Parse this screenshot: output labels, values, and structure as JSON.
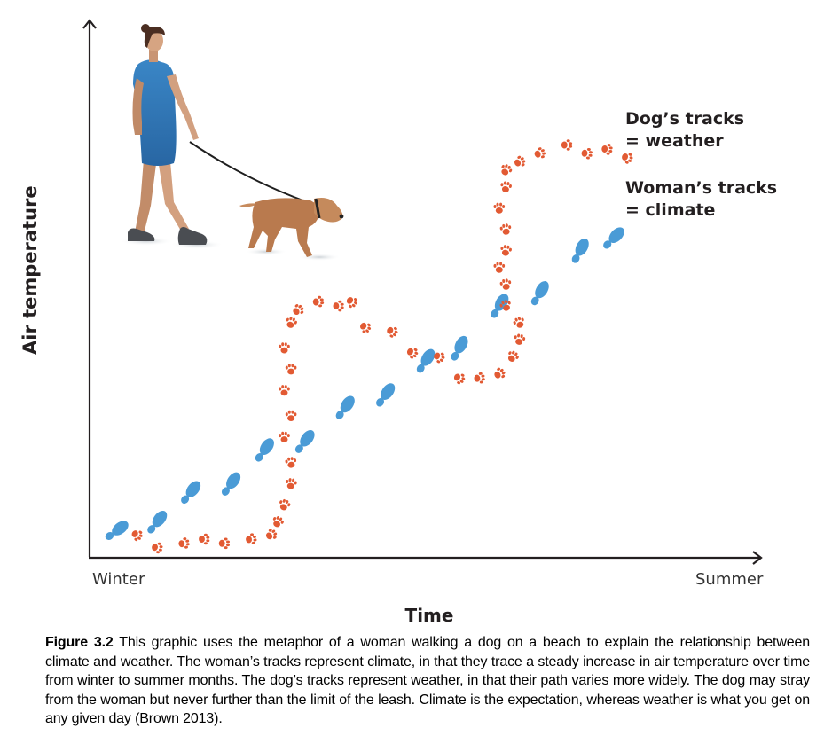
{
  "figure": {
    "y_axis_label": "Air temperature",
    "x_axis_label": "Time",
    "x_start_label": "Winter",
    "x_end_label": "Summer",
    "legend": [
      {
        "line1": "Dog’s tracks",
        "line2": "= weather",
        "icon": "paw-print-icon",
        "color": "#e25a33"
      },
      {
        "line1": "Woman’s tracks",
        "line2": "= climate",
        "icon": "shoe-print-icon",
        "color": "#4a9bd6"
      }
    ],
    "illustration": {
      "woman": "woman-walking-illustration",
      "dog": "dog-on-leash-illustration",
      "dress_color": "#2f76b5",
      "dog_color": "#b97a4e"
    }
  },
  "caption": {
    "label": "Figure 3.2",
    "text": " This graphic uses the metaphor of a woman walking a dog on a beach to explain the relationship between climate and weather. The woman’s tracks represent climate, in that they trace a steady increase in air temperature over time from winter to summer months. The dog’s tracks represent weather, in that their path varies more widely. The dog may stray from the woman but never further than the limit of the leash. Climate is the expectation, whereas weather is what you get on any given day (Brown 2013)."
  },
  "chart_data": {
    "type": "scatter",
    "title": "",
    "xlabel": "Time",
    "ylabel": "Air temperature",
    "x_tick_labels": [
      "Winter",
      "Summer"
    ],
    "xlim": [
      0,
      100
    ],
    "ylim": [
      0,
      100
    ],
    "grid": false,
    "legend_position": "top-right",
    "series": [
      {
        "name": "Woman's tracks = climate",
        "marker": "shoe-print",
        "color": "#4a9bd6",
        "points": [
          [
            4,
            2
          ],
          [
            10,
            4
          ],
          [
            15,
            11
          ],
          [
            21,
            13
          ],
          [
            26,
            21
          ],
          [
            32,
            23
          ],
          [
            38,
            31
          ],
          [
            44,
            34
          ],
          [
            50,
            42
          ],
          [
            55,
            45
          ],
          [
            61,
            55
          ],
          [
            67,
            58
          ],
          [
            73,
            68
          ],
          [
            78,
            71
          ]
        ]
      },
      {
        "name": "Dog's tracks = weather",
        "marker": "paw-print",
        "color": "#e25a33",
        "points": [
          [
            7,
            1
          ],
          [
            10,
            -2
          ],
          [
            14,
            -1
          ],
          [
            17,
            0
          ],
          [
            20,
            -1
          ],
          [
            24,
            0
          ],
          [
            27,
            1
          ],
          [
            28,
            4
          ],
          [
            29,
            8
          ],
          [
            30,
            13
          ],
          [
            30,
            18
          ],
          [
            29,
            24
          ],
          [
            30,
            29
          ],
          [
            29,
            35
          ],
          [
            30,
            40
          ],
          [
            29,
            45
          ],
          [
            30,
            51
          ],
          [
            31,
            54
          ],
          [
            34,
            56
          ],
          [
            37,
            55
          ],
          [
            39,
            56
          ],
          [
            41,
            50
          ],
          [
            45,
            49
          ],
          [
            48,
            44
          ],
          [
            52,
            43
          ],
          [
            55,
            38
          ],
          [
            58,
            38
          ],
          [
            61,
            39
          ],
          [
            63,
            43
          ],
          [
            64,
            47
          ],
          [
            64,
            51
          ],
          [
            62,
            55
          ],
          [
            62,
            60
          ],
          [
            61,
            64
          ],
          [
            62,
            68
          ],
          [
            62,
            73
          ],
          [
            61,
            78
          ],
          [
            62,
            83
          ],
          [
            62,
            87
          ],
          [
            64,
            89
          ],
          [
            67,
            91
          ],
          [
            71,
            93
          ],
          [
            74,
            91
          ],
          [
            77,
            92
          ],
          [
            80,
            90
          ]
        ]
      }
    ]
  }
}
